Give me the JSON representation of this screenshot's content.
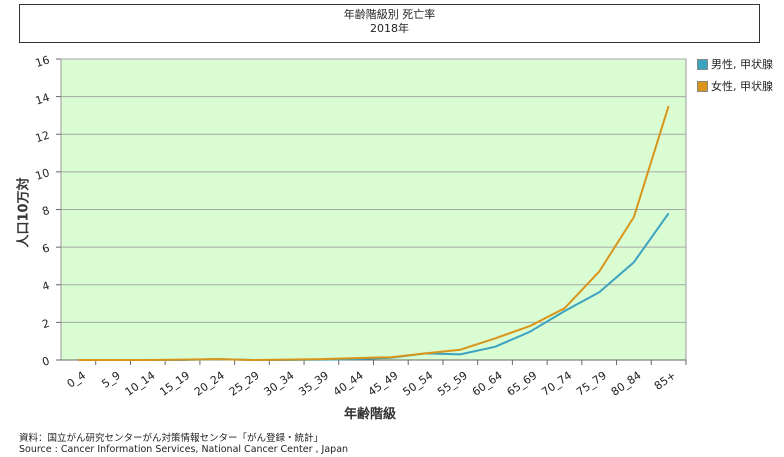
{
  "chart_data": {
    "type": "line",
    "title": "年齢階級別 死亡率",
    "subtitle": "2018年",
    "xlabel": "年齢階級",
    "ylabel": "人口10万対",
    "categories": [
      "0_4",
      "5_9",
      "10_14",
      "15_19",
      "20_24",
      "25_29",
      "30_34",
      "35_39",
      "40_44",
      "45_49",
      "50_54",
      "55_59",
      "60_64",
      "65_69",
      "70_74",
      "75_79",
      "80_84",
      "85+"
    ],
    "ylim": [
      0,
      16
    ],
    "yticks": [
      "0",
      "2",
      "4",
      "6",
      "8",
      "10",
      "12",
      "14",
      "16"
    ],
    "grid": true,
    "legend_position": "right",
    "plot_background": "#d9fcd2",
    "series": [
      {
        "name": "男性, 甲状腺",
        "color": "#3ba3bf",
        "values": [
          0,
          0,
          0,
          0,
          0.05,
          0,
          0,
          0.02,
          0.05,
          0.12,
          0.35,
          0.3,
          0.7,
          1.5,
          2.6,
          3.6,
          5.2,
          7.8
        ]
      },
      {
        "name": "女性, 甲状腺",
        "color": "#d9951a",
        "values": [
          0,
          0,
          0,
          0.02,
          0.05,
          0,
          0.02,
          0.05,
          0.1,
          0.15,
          0.35,
          0.55,
          1.15,
          1.8,
          2.75,
          4.7,
          7.6,
          13.5
        ]
      }
    ]
  },
  "source": {
    "line1": "資料：国立がん研究センターがん対策情報センター「がん登録・統計」",
    "line2": "Source : Cancer Information Services, National Cancer Center , Japan"
  }
}
